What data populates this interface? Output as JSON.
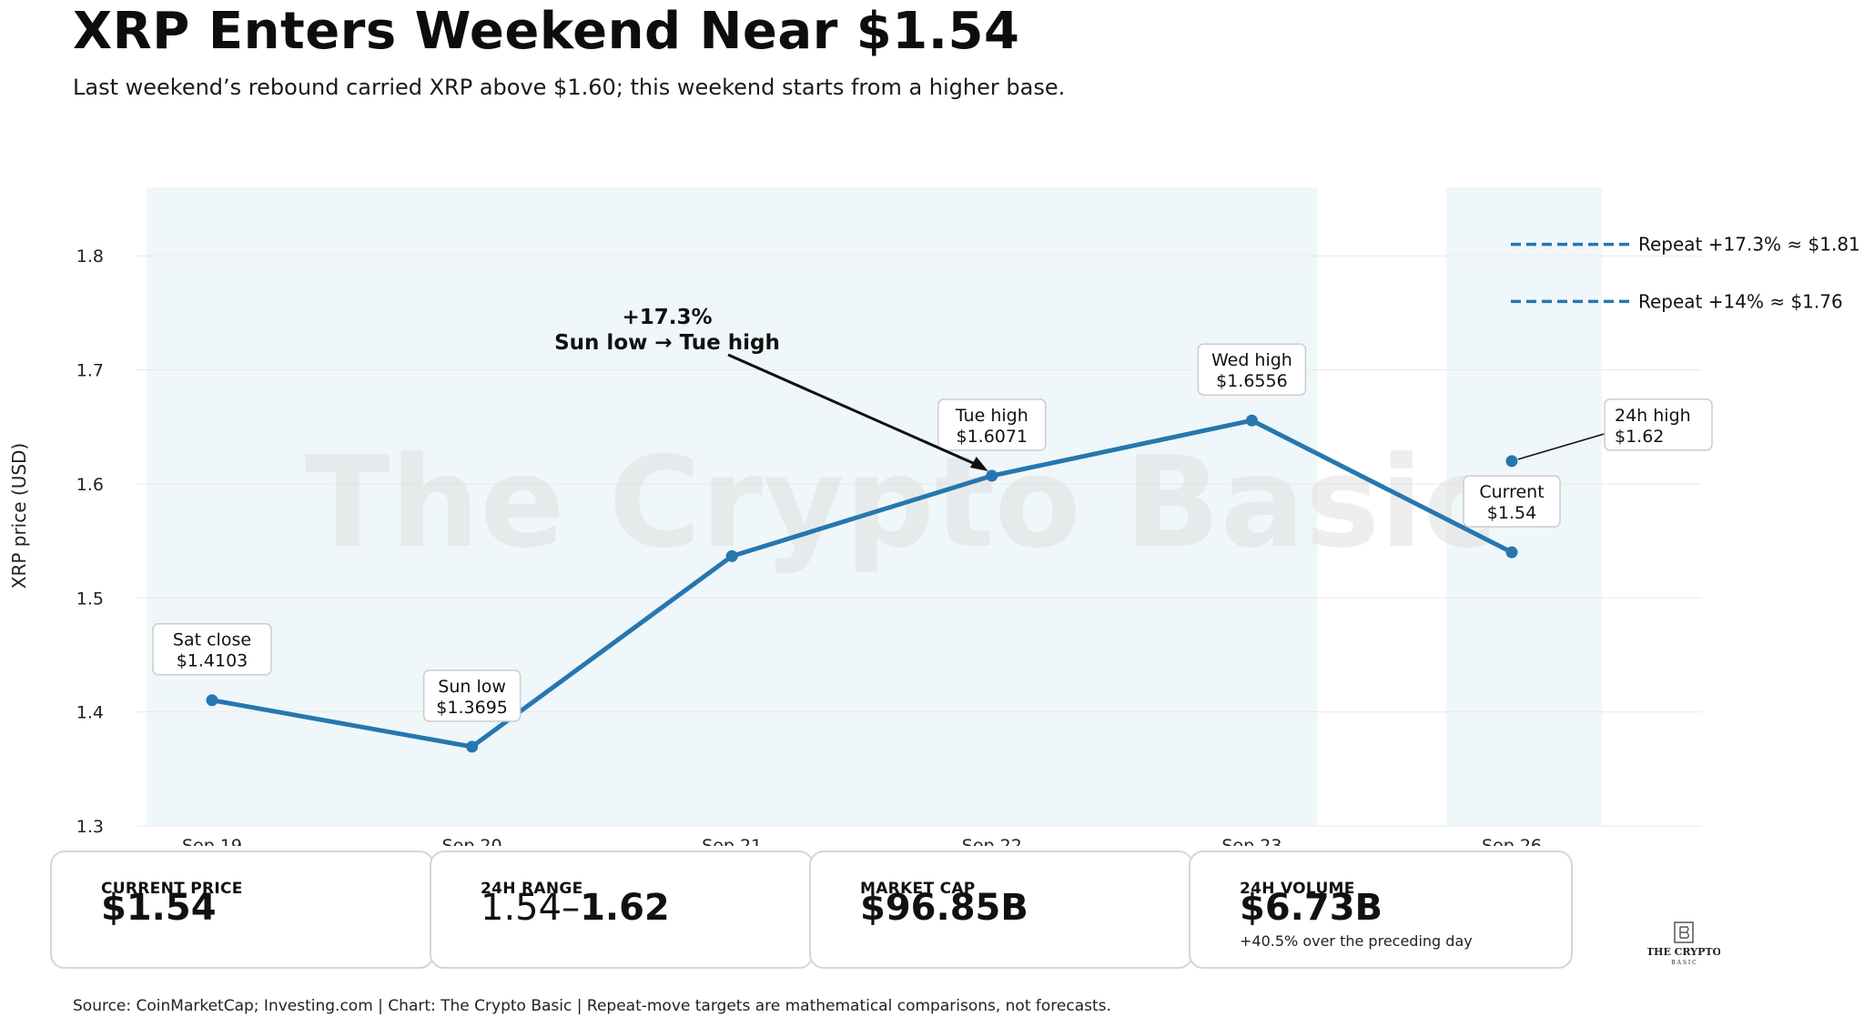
{
  "header": {
    "title": "XRP Enters Weekend Near $1.54",
    "subtitle": "Last weekend’s rebound carried XRP above $1.60; this weekend starts from a higher base."
  },
  "watermark": "The Crypto Basic",
  "chart_data": {
    "type": "line",
    "categories": [
      "Sep 19",
      "Sep 20",
      "Sep 21",
      "Sep 22",
      "Sep 23",
      "Sep 26"
    ],
    "values": [
      1.4103,
      1.3695,
      1.5366,
      1.6071,
      1.6556,
      1.54
    ],
    "series_color": "#2677b0",
    "ylabel": "XRP price (USD)",
    "xlabel": "",
    "ylim": [
      1.3,
      1.86
    ],
    "yticks": [
      1.3,
      1.4,
      1.5,
      1.6,
      1.7,
      1.8
    ],
    "ytick_labels": [
      "1.3",
      "1.4",
      "1.5",
      "1.6",
      "1.7",
      "1.8"
    ],
    "grid": true,
    "shaded_spans": [
      {
        "from": "Sep 19",
        "to": "Sep 23"
      },
      {
        "from": "Sep 26",
        "to": "Sep 26"
      }
    ],
    "point_labels": [
      {
        "index": 0,
        "line1": "Sat close",
        "line2": "$1.4103"
      },
      {
        "index": 1,
        "line1": "Sun low",
        "line2": "$1.3695"
      },
      {
        "index": 3,
        "line1": "Tue high",
        "line2": "$1.6071"
      },
      {
        "index": 4,
        "line1": "Wed high",
        "line2": "$1.6556"
      },
      {
        "index": 5,
        "line1": "Current",
        "line2": "$1.54"
      }
    ],
    "extra_point": {
      "category": "Sep 26",
      "value": 1.62,
      "line1": "24h high",
      "line2": "$1.62"
    },
    "reference_lines": [
      {
        "value": 1.81,
        "label": "Repeat +17.3% ≈ $1.81"
      },
      {
        "value": 1.76,
        "label": "Repeat +14% ≈ $1.76"
      }
    ],
    "annotation": {
      "line1": "+17.3%",
      "line2": "Sun low → Tue high",
      "points_to": "Sep 22"
    }
  },
  "cards": [
    {
      "label": "CURRENT PRICE",
      "value": "$1.54",
      "note": ""
    },
    {
      "label": "24H RANGE",
      "value_light": "1.54–",
      "value_bold": "1.62",
      "note": ""
    },
    {
      "label": "MARKET CAP",
      "value": "$96.85B",
      "note": ""
    },
    {
      "label": "24H VOLUME",
      "value": "$6.73B",
      "note": "+40.5% over the preceding day"
    }
  ],
  "logo": {
    "text": "THE CRYPTO",
    "subtext": "B A S I C"
  },
  "footer": "Source: CoinMarketCap; Investing.com  |  Chart: The Crypto Basic  |  Repeat-move targets are mathematical comparisons, not forecasts."
}
